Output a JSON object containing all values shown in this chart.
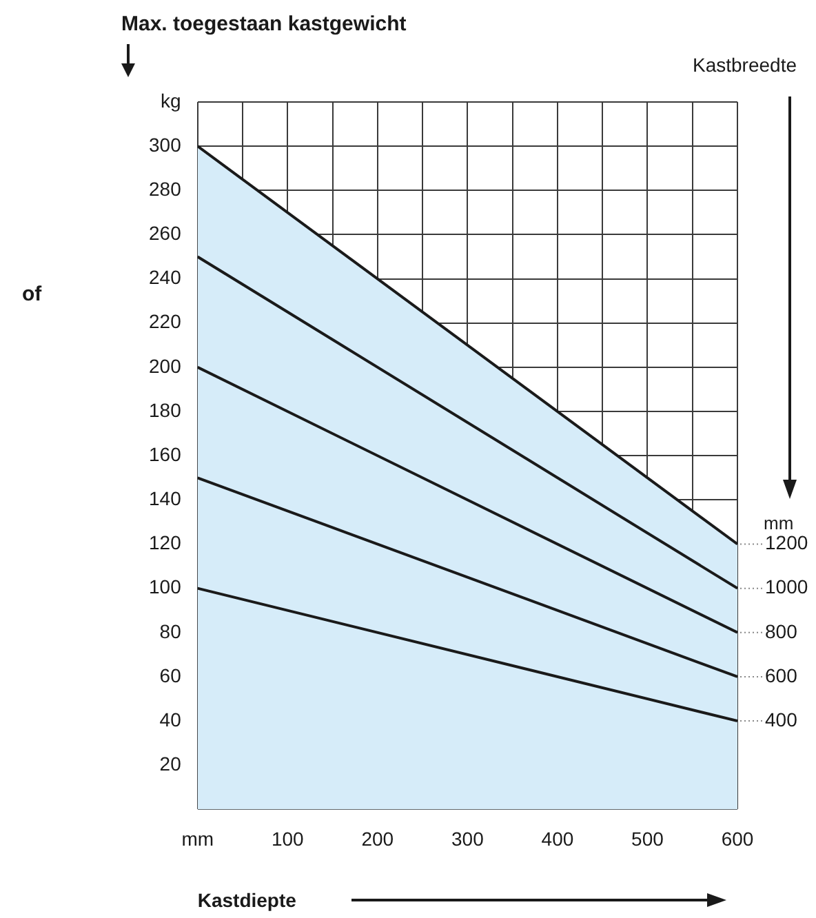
{
  "chart_data": {
    "type": "line",
    "title": "Max. toegestaan kastgewicht",
    "xlabel": "Kastdiepte",
    "legend_title": "Kastbreedte",
    "annotations": [
      "of",
      "mm"
    ],
    "x": [
      0,
      600
    ],
    "series": [
      {
        "name": "1200",
        "type": "area",
        "color": "#d6ecf9",
        "values": [
          300,
          120
        ]
      },
      {
        "name": "1000",
        "color": "#1a1a1a",
        "values": [
          250,
          100
        ]
      },
      {
        "name": "800",
        "color": "#1a1a1a",
        "values": [
          200,
          80
        ]
      },
      {
        "name": "600",
        "color": "#1a1a1a",
        "values": [
          150,
          60
        ]
      },
      {
        "name": "400",
        "color": "#1a1a1a",
        "values": [
          100,
          40
        ]
      }
    ],
    "xlim": [
      0,
      600
    ],
    "xticks": [
      {
        "value": 0,
        "label": "mm"
      },
      {
        "value": 50,
        "label": null
      },
      100,
      {
        "value": 150,
        "label": null
      },
      200,
      {
        "value": 250,
        "label": null
      },
      300,
      {
        "value": 350,
        "label": null
      },
      400,
      {
        "value": 450,
        "label": null
      },
      500,
      {
        "value": 550,
        "label": null
      },
      600
    ],
    "ylim": [
      0,
      320
    ],
    "yticks": [
      {
        "value": 0,
        "label": null
      },
      20,
      40,
      60,
      80,
      100,
      120,
      140,
      160,
      180,
      200,
      220,
      240,
      260,
      280,
      300,
      {
        "value": 320,
        "label": "kg"
      }
    ],
    "grid": true,
    "legend": false,
    "marker": "none",
    "line_style": "solid"
  }
}
